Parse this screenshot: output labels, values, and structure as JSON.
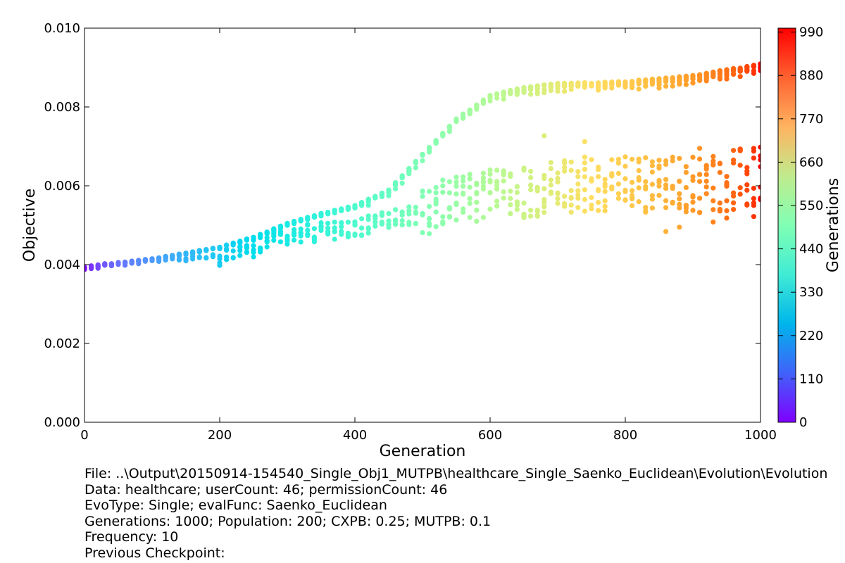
{
  "chart_data": {
    "type": "scatter",
    "title": "",
    "xlabel": "Generation",
    "ylabel": "Objective",
    "xlim": [
      0,
      1000
    ],
    "ylim": [
      0,
      0.01
    ],
    "xticks": [
      "0",
      "200",
      "400",
      "600",
      "800",
      "1000"
    ],
    "yticks": [
      "0.000",
      "0.002",
      "0.004",
      "0.006",
      "0.008",
      "0.010"
    ],
    "grid": false,
    "colorbar": {
      "label": "Generations",
      "range": [
        0,
        1000
      ],
      "colormap": "rainbow",
      "ticks": [
        "0",
        "110",
        "220",
        "330",
        "440",
        "550",
        "660",
        "770",
        "880",
        "990"
      ]
    },
    "sample_every": 10,
    "upper_band": [
      {
        "x": 0,
        "y": 0.00393
      },
      {
        "x": 50,
        "y": 0.00405
      },
      {
        "x": 100,
        "y": 0.00415
      },
      {
        "x": 150,
        "y": 0.0043
      },
      {
        "x": 200,
        "y": 0.00445
      },
      {
        "x": 250,
        "y": 0.0047
      },
      {
        "x": 300,
        "y": 0.00505
      },
      {
        "x": 350,
        "y": 0.0053
      },
      {
        "x": 400,
        "y": 0.0055
      },
      {
        "x": 450,
        "y": 0.0059
      },
      {
        "x": 500,
        "y": 0.0068
      },
      {
        "x": 550,
        "y": 0.0077
      },
      {
        "x": 600,
        "y": 0.0083
      },
      {
        "x": 650,
        "y": 0.0085
      },
      {
        "x": 700,
        "y": 0.0086
      },
      {
        "x": 800,
        "y": 0.00865
      },
      {
        "x": 900,
        "y": 0.0088
      },
      {
        "x": 1000,
        "y": 0.0091
      }
    ],
    "lower_band": [
      {
        "x": 0,
        "y": 0.00391
      },
      {
        "x": 100,
        "y": 0.0041
      },
      {
        "x": 200,
        "y": 0.0042
      },
      {
        "x": 250,
        "y": 0.0044
      },
      {
        "x": 300,
        "y": 0.0047
      },
      {
        "x": 400,
        "y": 0.0049
      },
      {
        "x": 450,
        "y": 0.0051
      },
      {
        "x": 500,
        "y": 0.0053
      },
      {
        "x": 550,
        "y": 0.0055
      },
      {
        "x": 600,
        "y": 0.0057
      },
      {
        "x": 650,
        "y": 0.0058
      },
      {
        "x": 700,
        "y": 0.0059
      },
      {
        "x": 800,
        "y": 0.006
      },
      {
        "x": 900,
        "y": 0.006
      },
      {
        "x": 1000,
        "y": 0.0061
      }
    ],
    "outlier_points": [
      {
        "x": 680,
        "y": 0.00727
      },
      {
        "x": 740,
        "y": 0.00712
      },
      {
        "x": 860,
        "y": 0.00484
      },
      {
        "x": 880,
        "y": 0.00495
      },
      {
        "x": 910,
        "y": 0.00695
      },
      {
        "x": 930,
        "y": 0.00508
      },
      {
        "x": 950,
        "y": 0.00518
      },
      {
        "x": 990,
        "y": 0.00522
      }
    ]
  },
  "info": {
    "lines": [
      "File: ..\\Output\\20150914-154540_Single_Obj1_MUTPB\\healthcare_Single_Saenko_Euclidean\\Evolution\\Evolution",
      "Data: healthcare; userCount: 46; permissionCount: 46",
      "EvoType: Single; evalFunc: Saenko_Euclidean",
      "Generations: 1000; Population: 200; CXPB: 0.25; MUTPB: 0.1",
      "Frequency: 10",
      "Previous Checkpoint:"
    ]
  }
}
